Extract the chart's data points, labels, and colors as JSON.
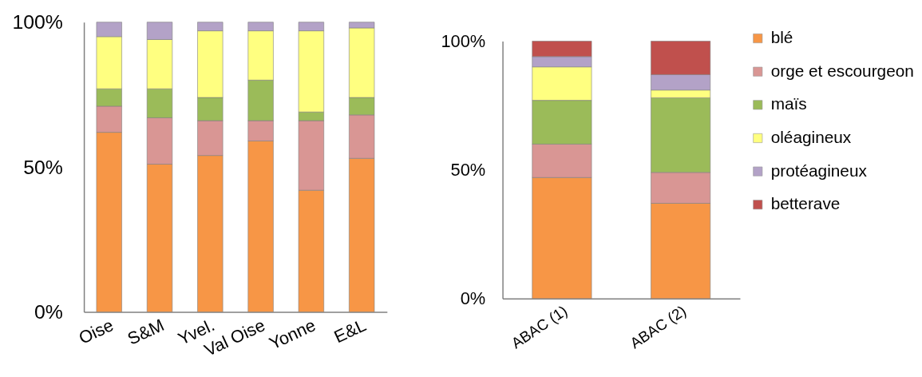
{
  "chart_data": [
    {
      "type": "bar",
      "stacked": true,
      "categories": [
        "Oise",
        "S&M",
        "Yvel.",
        "Val Oise",
        "Yonne",
        "E&L"
      ],
      "series": [
        {
          "color": "#f79646",
          "values": [
            62,
            51,
            54,
            59,
            42,
            53
          ]
        },
        {
          "color": "#d99694",
          "values": [
            9,
            16,
            12,
            7,
            24,
            15
          ]
        },
        {
          "color": "#9bbb59",
          "values": [
            6,
            10,
            8,
            14,
            3,
            6
          ]
        },
        {
          "color": "#ffff80",
          "values": [
            18,
            17,
            23,
            17,
            28,
            24
          ]
        },
        {
          "color": "#b3a2c7",
          "values": [
            5,
            6,
            3,
            3,
            3,
            2
          ]
        }
      ],
      "ylim": [
        0,
        100
      ],
      "yticks": [
        {
          "value": 0,
          "label": "0%"
        },
        {
          "value": 50,
          "label": "50%"
        },
        {
          "value": 100,
          "label": "100%"
        }
      ]
    },
    {
      "type": "bar",
      "stacked": true,
      "categories": [
        "ABAC (1)",
        "ABAC (2)"
      ],
      "series": [
        {
          "name": "blé",
          "color": "#f79646",
          "values": [
            47,
            37
          ]
        },
        {
          "name": "orge et escourgeon",
          "color": "#d99694",
          "values": [
            13,
            12
          ]
        },
        {
          "name": "maïs",
          "color": "#9bbb59",
          "values": [
            17,
            29
          ]
        },
        {
          "name": "oléagineux",
          "color": "#ffff80",
          "values": [
            13,
            3
          ]
        },
        {
          "name": "protéagineux",
          "color": "#b3a2c7",
          "values": [
            4,
            6
          ]
        },
        {
          "name": "betterave",
          "color": "#c0504d",
          "values": [
            6,
            13
          ]
        }
      ],
      "ylim": [
        0,
        100
      ],
      "yticks": [
        {
          "value": 0,
          "label": "0%"
        },
        {
          "value": 50,
          "label": "50%"
        },
        {
          "value": 100,
          "label": "100%"
        }
      ],
      "legend": "right"
    }
  ]
}
